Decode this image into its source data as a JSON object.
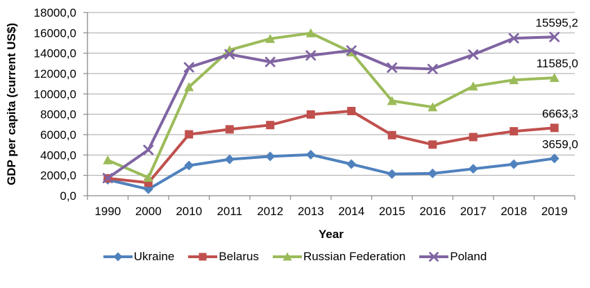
{
  "chart_data": {
    "type": "line",
    "title": "",
    "xlabel": "Year",
    "ylabel": "GDP per capita (current US$)",
    "categories": [
      "1990",
      "2000",
      "2010",
      "2011",
      "2012",
      "2013",
      "2014",
      "2015",
      "2016",
      "2017",
      "2018",
      "2019"
    ],
    "ylim": [
      0,
      18000
    ],
    "ytick_step": 2000,
    "ytick_labels": [
      "0,0",
      "2000,0",
      "4000,0",
      "6000,0",
      "8000,0",
      "10000,0",
      "12000,0",
      "14000,0",
      "16000,0",
      "18000,0"
    ],
    "grid": "horizontal",
    "legend_position": "bottom",
    "number_format": "comma-decimal",
    "series": [
      {
        "name": "Ukraine",
        "color": "#4F81BD",
        "marker": "diamond",
        "end_label": "3659,0",
        "values": [
          1569.7,
          635.7,
          2965.1,
          3569.8,
          3856.8,
          4030.3,
          3104.7,
          2124.7,
          2187.7,
          2640.7,
          3095.2,
          3659.0
        ]
      },
      {
        "name": "Belarus",
        "color": "#C0504D",
        "marker": "square",
        "end_label": "6663,3",
        "values": [
          1705.1,
          1273.0,
          6029.1,
          6519.2,
          6940.1,
          7978.9,
          8318.5,
          5949.1,
          5022.5,
          5761.7,
          6330.1,
          6663.3
        ]
      },
      {
        "name": "Russian Federation",
        "color": "#9BBB59",
        "marker": "triangle",
        "end_label": "11585,0",
        "values": [
          3492.7,
          1771.6,
          10675.0,
          14311.1,
          15420.9,
          15974.6,
          14095.6,
          9313.0,
          8704.9,
          10751.1,
          11371.0,
          11585.0
        ]
      },
      {
        "name": "Poland",
        "color": "#8064A2",
        "marker": "x",
        "end_label": "15595,2",
        "values": [
          1731.2,
          4501.5,
          12613.0,
          13890.7,
          13142.3,
          13780.7,
          14271.3,
          12578.5,
          12447.2,
          13864.7,
          15468.5,
          15595.2
        ]
      }
    ],
    "colors": {
      "gridline": "#A6A6A6",
      "axis": "#898989",
      "text": "#000000",
      "background": "#FFFFFF"
    }
  }
}
